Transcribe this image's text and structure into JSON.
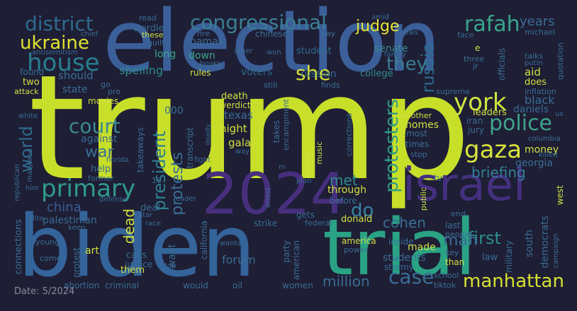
{
  "caption": "Date: 5/2024",
  "palette": {
    "background": "#1e1e35"
  },
  "words": [
    {
      "text": "trump",
      "color": "#c8df2a"
    },
    {
      "text": "election",
      "color": "#3b5f99"
    },
    {
      "text": "biden",
      "color": "#34649a"
    },
    {
      "text": "trial",
      "color": "#2aa385"
    },
    {
      "text": "2024",
      "color": "#472f7d"
    },
    {
      "text": "israel",
      "color": "#44307f"
    },
    {
      "text": "primary",
      "color": "#2f9a8b"
    },
    {
      "text": "gaza",
      "color": "#d8e43a"
    },
    {
      "text": "court",
      "color": "#3a8a91"
    },
    {
      "text": "police",
      "color": "#3fa38a"
    },
    {
      "text": "york",
      "color": "#d0e340"
    },
    {
      "text": "house",
      "color": "#2a7d8e"
    },
    {
      "text": "district",
      "color": "#2f6b8e"
    },
    {
      "text": "congressional",
      "color": "#3a7f93"
    },
    {
      "text": "ukraine",
      "color": "#e0e331"
    },
    {
      "text": "rafah",
      "color": "#3aa58a"
    },
    {
      "text": "case",
      "color": "#3a6d94"
    },
    {
      "text": "manhattan",
      "color": "#d6e132"
    },
    {
      "text": "protesters",
      "color": "#2e9a88"
    },
    {
      "text": "russia",
      "color": "#2e6b8e"
    },
    {
      "text": "judge",
      "color": "#e4e536"
    },
    {
      "text": "she",
      "color": "#d6e23a"
    },
    {
      "text": "they",
      "color": "#3b7d93"
    },
    {
      "text": "world",
      "color": "#2e6b8e"
    },
    {
      "text": "war",
      "color": "#3a6d94"
    },
    {
      "text": "china",
      "color": "#3a5f96"
    },
    {
      "text": "president",
      "color": "#2e7f8e"
    },
    {
      "text": "protests",
      "color": "#3a6d94"
    },
    {
      "text": "briefing",
      "color": "#34819a"
    },
    {
      "text": "israeli",
      "color": "#3aa58a"
    },
    {
      "text": "first",
      "color": "#2e8f8e"
    },
    {
      "text": "cohen",
      "color": "#3a6d94"
    },
    {
      "text": "do",
      "color": "#3a7fa0"
    },
    {
      "text": "met",
      "color": "#2e8a8e"
    },
    {
      "text": "man",
      "color": "#3a6d94"
    },
    {
      "text": "dead",
      "color": "#d0e040"
    },
    {
      "text": "million",
      "color": "#3a6d94"
    },
    {
      "text": "spelling",
      "color": "#2e8a8e"
    },
    {
      "text": "long",
      "color": "#3aa58a"
    },
    {
      "text": "down",
      "color": "#3aa58a"
    },
    {
      "text": "should",
      "color": "#3a6d94"
    },
    {
      "text": "state",
      "color": "#3a6d94"
    },
    {
      "text": "wordle",
      "color": "#3a6d94"
    },
    {
      "text": "hamas",
      "color": "#3a6d94"
    },
    {
      "text": "senate",
      "color": "#3a8a91"
    },
    {
      "text": "college",
      "color": "#2e8a8e"
    },
    {
      "text": "russian",
      "color": "#2e6b8e"
    },
    {
      "text": "student",
      "color": "#2e6b8e"
    },
    {
      "text": "voters",
      "color": "#2e6b8e"
    },
    {
      "text": "years",
      "color": "#3a6d94"
    },
    {
      "text": "black",
      "color": "#3a6d94"
    },
    {
      "text": "aid",
      "color": "#d0e040"
    },
    {
      "text": "does",
      "color": "#d0e040"
    },
    {
      "text": "daniels",
      "color": "#3a6d94"
    },
    {
      "text": "leaders",
      "color": "#d0e040"
    },
    {
      "text": "jury",
      "color": "#3a6d94"
    },
    {
      "text": "iran",
      "color": "#3a6d94"
    },
    {
      "text": "money",
      "color": "#d0e040"
    },
    {
      "text": "georgia",
      "color": "#3a6d94"
    },
    {
      "text": "texas",
      "color": "#3a6d94"
    },
    {
      "text": "night",
      "color": "#d0e040"
    },
    {
      "text": "gala",
      "color": "#d0e040"
    },
    {
      "text": "death",
      "color": "#d0e040"
    },
    {
      "text": "verdict",
      "color": "#d0e040"
    },
    {
      "text": "homes",
      "color": "#d0e040"
    },
    {
      "text": "against",
      "color": "#3a6d94"
    },
    {
      "text": "help",
      "color": "#3a6d94"
    },
    {
      "text": "deal",
      "color": "#3a6d94"
    },
    {
      "text": "palestinian",
      "color": "#3a6d94"
    },
    {
      "text": "art",
      "color": "#d0e040"
    },
    {
      "text": "calls",
      "color": "#3a6d94"
    },
    {
      "text": "justice",
      "color": "#3a6d94"
    },
    {
      "text": "them",
      "color": "#d0e040"
    },
    {
      "text": "want",
      "color": "#3a6d94"
    },
    {
      "text": "forum",
      "color": "#3a6d94"
    },
    {
      "text": "through",
      "color": "#d0e040"
    },
    {
      "text": "donald",
      "color": "#d0e040"
    },
    {
      "text": "before",
      "color": "#3a6d94"
    },
    {
      "text": "gets",
      "color": "#3a6d94"
    },
    {
      "text": "strike",
      "color": "#3a6d94"
    },
    {
      "text": "america",
      "color": "#d0e040"
    },
    {
      "text": "made",
      "color": "#d0e040"
    },
    {
      "text": "students",
      "color": "#3a6d94"
    },
    {
      "text": "stormy",
      "color": "#3a6d94"
    },
    {
      "text": "inside",
      "color": "#3a6d94"
    },
    {
      "text": "last",
      "color": "#3a6d94"
    },
    {
      "text": "south",
      "color": "#3a6d94"
    },
    {
      "text": "democrats",
      "color": "#3a6d94"
    },
    {
      "text": "military",
      "color": "#3a6d94"
    },
    {
      "text": "law",
      "color": "#3a6d94"
    },
    {
      "text": "than",
      "color": "#d0e040"
    },
    {
      "text": "west",
      "color": "#d0e040"
    },
    {
      "text": "people",
      "color": "#3a6d94"
    },
    {
      "text": "key",
      "color": "#3a6d94"
    },
    {
      "text": "connections",
      "color": "#3a6d94"
    },
    {
      "text": "young",
      "color": "#3a6d94"
    },
    {
      "text": "comes",
      "color": "#3a6d94"
    },
    {
      "text": "protest",
      "color": "#3a6d94"
    },
    {
      "text": "abortion",
      "color": "#3a6d94"
    },
    {
      "text": "criminal",
      "color": "#3a6d94"
    },
    {
      "text": "would",
      "color": "#3a6d94"
    },
    {
      "text": "oil",
      "color": "#3a6d94"
    },
    {
      "text": "women",
      "color": "#3a6d94"
    },
    {
      "text": "school",
      "color": "#3a6d94"
    },
    {
      "text": "tiktok",
      "color": "#3a6d94"
    },
    {
      "text": "california",
      "color": "#3a6d94"
    },
    {
      "text": "party",
      "color": "#3a6d94"
    },
    {
      "text": "american",
      "color": "#3a6d94"
    },
    {
      "text": "power",
      "color": "#3a6d94"
    },
    {
      "text": "federal",
      "color": "#3a6d94"
    },
    {
      "text": "takeaways",
      "color": "#3a6d94"
    },
    {
      "text": "transcript",
      "color": "#3a6d94"
    },
    {
      "text": "takes",
      "color": "#3a6d94"
    },
    {
      "text": "encampment",
      "color": "#3a6d94"
    },
    {
      "text": "corrections",
      "color": "#3a6d94"
    },
    {
      "text": "where",
      "color": "#d0e040"
    },
    {
      "text": "music",
      "color": "#d0e040"
    },
    {
      "text": "tv",
      "color": "#3a6d94"
    },
    {
      "text": "public",
      "color": "#d0e040"
    },
    {
      "text": "end",
      "color": "#3a6d94"
    },
    {
      "text": "most",
      "color": "#3a6d94"
    },
    {
      "text": "times",
      "color": "#3a6d94"
    },
    {
      "text": "stop",
      "color": "#3a6d94"
    },
    {
      "text": "another",
      "color": "#d0e040"
    },
    {
      "text": "movies",
      "color": "#d0e040"
    },
    {
      "text": "two",
      "color": "#d0e040"
    },
    {
      "text": "found",
      "color": "#3a6d94"
    },
    {
      "text": "attack",
      "color": "#d0e040"
    },
    {
      "text": "go",
      "color": "#3a6d94"
    },
    {
      "text": "pro",
      "color": "#3a6d94"
    },
    {
      "text": "still",
      "color": "#3a6d94"
    },
    {
      "text": "finds",
      "color": "#3a6d94"
    },
    {
      "text": "supreme",
      "color": "#3a6d94"
    },
    {
      "text": "inflation",
      "color": "#3a6d94"
    },
    {
      "text": "officials",
      "color": "#3a6d94"
    },
    {
      "text": "quotation",
      "color": "#3a6d94"
    },
    {
      "text": "talks",
      "color": "#3a6d94"
    },
    {
      "text": "putin",
      "color": "#3a6d94"
    },
    {
      "text": "jr",
      "color": "#3a6d94"
    },
    {
      "text": "three",
      "color": "#3a6d94"
    },
    {
      "text": "e",
      "color": "#d0e040"
    },
    {
      "text": "michael",
      "color": "#3a6d94"
    },
    {
      "text": "face",
      "color": "#3a6d94"
    },
    {
      "text": "chinese",
      "color": "#3a6d94"
    },
    {
      "text": "pay",
      "color": "#3a6d94"
    },
    {
      "text": "news",
      "color": "#3a6d94"
    },
    {
      "text": "amid",
      "color": "#3a6d94"
    },
    {
      "text": "family",
      "color": "#3a6d94"
    },
    {
      "text": "won",
      "color": "#3a6d94"
    },
    {
      "text": "other",
      "color": "#3a6d94"
    },
    {
      "text": "books",
      "color": "#3a6d94"
    },
    {
      "text": "change",
      "color": "#3a6d94"
    },
    {
      "text": "rules",
      "color": "#d0e040"
    },
    {
      "text": "fire",
      "color": "#3a6d94"
    },
    {
      "text": "guilty",
      "color": "#3a6d94"
    },
    {
      "text": "these",
      "color": "#d0e040"
    },
    {
      "text": "read",
      "color": "#3a6d94"
    },
    {
      "text": "chief",
      "color": "#3a6d94"
    },
    {
      "text": "antisemitism",
      "color": "#3a6d94"
    },
    {
      "text": "republican",
      "color": "#3a6d94"
    },
    {
      "text": "maryland",
      "color": "#3a6d94"
    },
    {
      "text": "him",
      "color": "#3a6d94"
    },
    {
      "text": "alito",
      "color": "#3a6d94"
    },
    {
      "text": "keep",
      "color": "#3a6d94"
    },
    {
      "text": "former",
      "color": "#3a6d94"
    },
    {
      "text": "defense",
      "color": "#3a6d94"
    },
    {
      "text": "florida",
      "color": "#3a6d94"
    },
    {
      "text": "leader",
      "color": "#3a6d94"
    },
    {
      "text": "wants",
      "color": "#3a6d94"
    },
    {
      "text": "top",
      "color": "#3a6d94"
    },
    {
      "text": "arrest",
      "color": "#3a6d94"
    },
    {
      "text": "plan",
      "color": "#3a6d94"
    },
    {
      "text": "way",
      "color": "#3a6d94"
    },
    {
      "text": "deadly",
      "color": "#3a6d94"
    },
    {
      "text": "10",
      "color": "#3a6d94"
    },
    {
      "text": "000",
      "color": "#3a6d94"
    },
    {
      "text": "us",
      "color": "#3a6d94"
    },
    {
      "text": "killed",
      "color": "#3a6d94"
    },
    {
      "text": "columbia",
      "color": "#3a6d94"
    },
    {
      "text": "campaign",
      "color": "#3a6d94"
    },
    {
      "text": "star",
      "color": "#3a6d94"
    },
    {
      "text": "race",
      "color": "#3a6d94"
    },
    {
      "text": "fight",
      "color": "#3a6d94"
    },
    {
      "text": "white",
      "color": "#3a6d94"
    },
    {
      "text": "m",
      "color": "#3a6d94"
    }
  ]
}
